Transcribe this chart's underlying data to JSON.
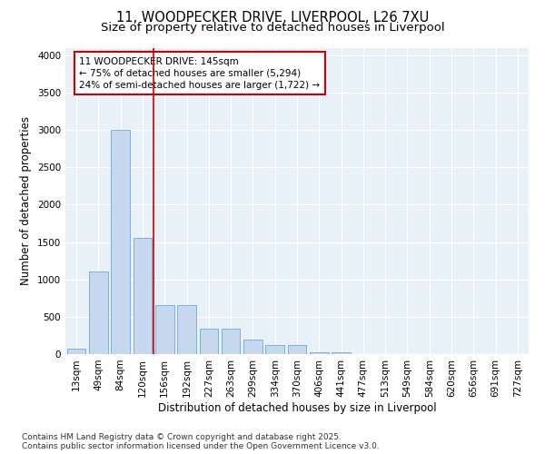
{
  "title_line1": "11, WOODPECKER DRIVE, LIVERPOOL, L26 7XU",
  "title_line2": "Size of property relative to detached houses in Liverpool",
  "xlabel": "Distribution of detached houses by size in Liverpool",
  "ylabel": "Number of detached properties",
  "categories": [
    "13sqm",
    "49sqm",
    "84sqm",
    "120sqm",
    "156sqm",
    "192sqm",
    "227sqm",
    "263sqm",
    "299sqm",
    "334sqm",
    "370sqm",
    "406sqm",
    "441sqm",
    "477sqm",
    "513sqm",
    "549sqm",
    "584sqm",
    "620sqm",
    "656sqm",
    "691sqm",
    "727sqm"
  ],
  "values": [
    75,
    1100,
    3000,
    1550,
    650,
    650,
    340,
    340,
    200,
    120,
    120,
    20,
    20,
    5,
    0,
    0,
    0,
    0,
    0,
    0,
    0
  ],
  "bar_color": "#c5d8ed",
  "bar_edge_color": "#5b9bd5",
  "vline_color": "#cc0000",
  "annotation_text": "11 WOODPECKER DRIVE: 145sqm\n← 75% of detached houses are smaller (5,294)\n24% of semi-detached houses are larger (1,722) →",
  "annotation_box_color": "#cc0000",
  "ylim": [
    0,
    4100
  ],
  "yticks": [
    0,
    500,
    1000,
    1500,
    2000,
    2500,
    3000,
    3500,
    4000
  ],
  "background_color": "#e8f0f8",
  "footer": "Contains HM Land Registry data © Crown copyright and database right 2025.\nContains public sector information licensed under the Open Government Licence v3.0.",
  "title_fontsize": 10.5,
  "subtitle_fontsize": 9.5,
  "axis_label_fontsize": 8.5,
  "tick_fontsize": 7.5,
  "annotation_fontsize": 7.5,
  "footer_fontsize": 6.5
}
